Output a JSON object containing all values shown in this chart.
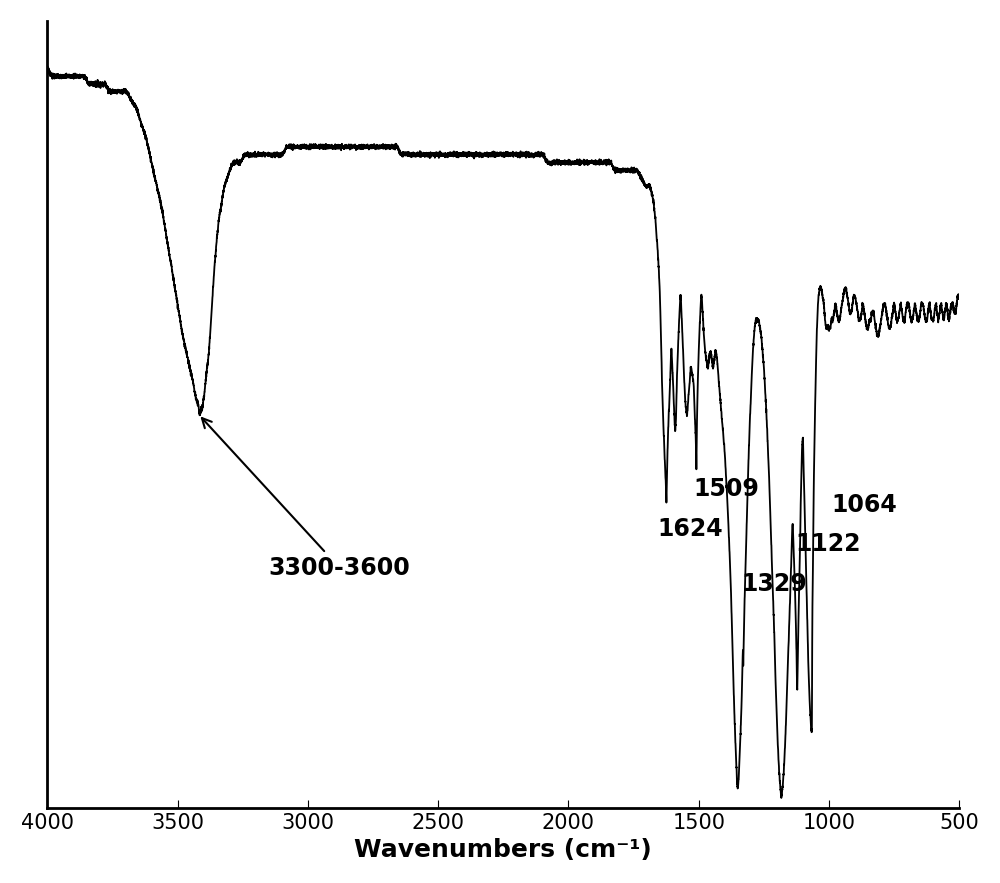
{
  "xlim": [
    4000,
    500
  ],
  "ylim": [
    0,
    100
  ],
  "xlabel": "Wavenumbers (cm⁻¹)",
  "xlabel_fontsize": 18,
  "tick_fontsize": 15,
  "line_color": "#000000",
  "line_width": 1.3,
  "background_color": "#ffffff",
  "annotation_fontsize": 17,
  "annotation_fontweight": "bold",
  "keypoints": [
    [
      4000,
      94
    ],
    [
      3980,
      93
    ],
    [
      3960,
      93
    ],
    [
      3940,
      93
    ],
    [
      3920,
      93
    ],
    [
      3900,
      93
    ],
    [
      3880,
      93
    ],
    [
      3860,
      93
    ],
    [
      3840,
      92
    ],
    [
      3820,
      92
    ],
    [
      3800,
      92
    ],
    [
      3780,
      92
    ],
    [
      3760,
      91
    ],
    [
      3740,
      91
    ],
    [
      3720,
      91
    ],
    [
      3700,
      91
    ],
    [
      3680,
      90
    ],
    [
      3660,
      89
    ],
    [
      3640,
      87
    ],
    [
      3620,
      85
    ],
    [
      3600,
      82
    ],
    [
      3580,
      79
    ],
    [
      3560,
      76
    ],
    [
      3540,
      72
    ],
    [
      3520,
      68
    ],
    [
      3500,
      64
    ],
    [
      3480,
      60
    ],
    [
      3460,
      57
    ],
    [
      3440,
      54
    ],
    [
      3430,
      52
    ],
    [
      3420,
      51
    ],
    [
      3415,
      50
    ],
    [
      3410,
      50.5
    ],
    [
      3405,
      51
    ],
    [
      3400,
      52
    ],
    [
      3390,
      55
    ],
    [
      3380,
      58
    ],
    [
      3370,
      63
    ],
    [
      3360,
      68
    ],
    [
      3350,
      72
    ],
    [
      3340,
      75
    ],
    [
      3330,
      77
    ],
    [
      3320,
      79
    ],
    [
      3310,
      80
    ],
    [
      3300,
      81
    ],
    [
      3280,
      82
    ],
    [
      3260,
      82
    ],
    [
      3240,
      83
    ],
    [
      3220,
      83
    ],
    [
      3200,
      83
    ],
    [
      3180,
      83
    ],
    [
      3160,
      83
    ],
    [
      3140,
      83
    ],
    [
      3120,
      83
    ],
    [
      3100,
      83
    ],
    [
      3080,
      84
    ],
    [
      3060,
      84
    ],
    [
      3040,
      84
    ],
    [
      3020,
      84
    ],
    [
      3000,
      84
    ],
    [
      2980,
      84
    ],
    [
      2960,
      84
    ],
    [
      2940,
      84
    ],
    [
      2920,
      84
    ],
    [
      2900,
      84
    ],
    [
      2880,
      84
    ],
    [
      2860,
      84
    ],
    [
      2840,
      84
    ],
    [
      2820,
      84
    ],
    [
      2800,
      84
    ],
    [
      2780,
      84
    ],
    [
      2760,
      84
    ],
    [
      2740,
      84
    ],
    [
      2720,
      84
    ],
    [
      2700,
      84
    ],
    [
      2680,
      84
    ],
    [
      2660,
      84
    ],
    [
      2640,
      83
    ],
    [
      2620,
      83
    ],
    [
      2600,
      83
    ],
    [
      2580,
      83
    ],
    [
      2560,
      83
    ],
    [
      2540,
      83
    ],
    [
      2520,
      83
    ],
    [
      2500,
      83
    ],
    [
      2480,
      83
    ],
    [
      2460,
      83
    ],
    [
      2440,
      83
    ],
    [
      2420,
      83
    ],
    [
      2400,
      83
    ],
    [
      2380,
      83
    ],
    [
      2360,
      83
    ],
    [
      2340,
      83
    ],
    [
      2320,
      83
    ],
    [
      2300,
      83
    ],
    [
      2280,
      83
    ],
    [
      2260,
      83
    ],
    [
      2240,
      83
    ],
    [
      2220,
      83
    ],
    [
      2200,
      83
    ],
    [
      2180,
      83
    ],
    [
      2160,
      83
    ],
    [
      2140,
      83
    ],
    [
      2120,
      83
    ],
    [
      2100,
      83
    ],
    [
      2080,
      82
    ],
    [
      2060,
      82
    ],
    [
      2040,
      82
    ],
    [
      2020,
      82
    ],
    [
      2000,
      82
    ],
    [
      1980,
      82
    ],
    [
      1960,
      82
    ],
    [
      1940,
      82
    ],
    [
      1920,
      82
    ],
    [
      1900,
      82
    ],
    [
      1880,
      82
    ],
    [
      1860,
      82
    ],
    [
      1840,
      82
    ],
    [
      1820,
      81
    ],
    [
      1800,
      81
    ],
    [
      1780,
      81
    ],
    [
      1760,
      81
    ],
    [
      1740,
      81
    ],
    [
      1720,
      80
    ],
    [
      1700,
      79
    ],
    [
      1690,
      79
    ],
    [
      1680,
      78
    ],
    [
      1670,
      76
    ],
    [
      1660,
      72
    ],
    [
      1650,
      66
    ],
    [
      1645,
      60
    ],
    [
      1640,
      53
    ],
    [
      1635,
      48
    ],
    [
      1630,
      44
    ],
    [
      1625,
      40
    ],
    [
      1624,
      39
    ],
    [
      1622,
      42
    ],
    [
      1620,
      45
    ],
    [
      1615,
      50
    ],
    [
      1610,
      54
    ],
    [
      1605,
      58
    ],
    [
      1600,
      55
    ],
    [
      1595,
      51
    ],
    [
      1590,
      48
    ],
    [
      1587,
      50
    ],
    [
      1584,
      54
    ],
    [
      1580,
      58
    ],
    [
      1575,
      62
    ],
    [
      1570,
      65
    ],
    [
      1565,
      62
    ],
    [
      1560,
      58
    ],
    [
      1555,
      54
    ],
    [
      1550,
      51
    ],
    [
      1545,
      50
    ],
    [
      1540,
      52
    ],
    [
      1535,
      54
    ],
    [
      1530,
      56
    ],
    [
      1525,
      55
    ],
    [
      1520,
      54
    ],
    [
      1515,
      50
    ],
    [
      1510,
      45
    ],
    [
      1509,
      43
    ],
    [
      1508,
      46
    ],
    [
      1505,
      52
    ],
    [
      1502,
      56
    ],
    [
      1500,
      58
    ],
    [
      1495,
      62
    ],
    [
      1490,
      65
    ],
    [
      1485,
      63
    ],
    [
      1480,
      60
    ],
    [
      1475,
      58
    ],
    [
      1470,
      57
    ],
    [
      1465,
      56
    ],
    [
      1460,
      57
    ],
    [
      1455,
      58
    ],
    [
      1450,
      57
    ],
    [
      1445,
      56
    ],
    [
      1440,
      57
    ],
    [
      1435,
      58
    ],
    [
      1430,
      57
    ],
    [
      1425,
      55
    ],
    [
      1420,
      53
    ],
    [
      1415,
      51
    ],
    [
      1410,
      49
    ],
    [
      1405,
      47
    ],
    [
      1400,
      45
    ],
    [
      1395,
      42
    ],
    [
      1390,
      39
    ],
    [
      1385,
      35
    ],
    [
      1380,
      31
    ],
    [
      1375,
      26
    ],
    [
      1370,
      20
    ],
    [
      1365,
      14
    ],
    [
      1360,
      9
    ],
    [
      1355,
      5
    ],
    [
      1352,
      3
    ],
    [
      1350,
      2.5
    ],
    [
      1348,
      3
    ],
    [
      1345,
      5
    ],
    [
      1340,
      9
    ],
    [
      1335,
      14
    ],
    [
      1330,
      20
    ],
    [
      1329,
      18
    ],
    [
      1328,
      20
    ],
    [
      1325,
      25
    ],
    [
      1320,
      31
    ],
    [
      1315,
      37
    ],
    [
      1310,
      43
    ],
    [
      1305,
      48
    ],
    [
      1300,
      52
    ],
    [
      1295,
      56
    ],
    [
      1290,
      59
    ],
    [
      1285,
      61
    ],
    [
      1280,
      62
    ],
    [
      1275,
      62
    ],
    [
      1270,
      62
    ],
    [
      1265,
      61
    ],
    [
      1260,
      60
    ],
    [
      1255,
      58
    ],
    [
      1250,
      56
    ],
    [
      1245,
      53
    ],
    [
      1240,
      50
    ],
    [
      1235,
      46
    ],
    [
      1230,
      42
    ],
    [
      1225,
      37
    ],
    [
      1220,
      32
    ],
    [
      1215,
      27
    ],
    [
      1210,
      22
    ],
    [
      1205,
      16
    ],
    [
      1200,
      11
    ],
    [
      1195,
      7
    ],
    [
      1190,
      4
    ],
    [
      1185,
      2
    ],
    [
      1183,
      1.5
    ],
    [
      1180,
      2
    ],
    [
      1175,
      4
    ],
    [
      1170,
      7
    ],
    [
      1165,
      11
    ],
    [
      1160,
      16
    ],
    [
      1155,
      21
    ],
    [
      1150,
      26
    ],
    [
      1145,
      31
    ],
    [
      1140,
      36
    ],
    [
      1135,
      32
    ],
    [
      1130,
      27
    ],
    [
      1125,
      20
    ],
    [
      1122,
      15
    ],
    [
      1120,
      18
    ],
    [
      1118,
      22
    ],
    [
      1115,
      28
    ],
    [
      1110,
      35
    ],
    [
      1108,
      40
    ],
    [
      1105,
      44
    ],
    [
      1103,
      46
    ],
    [
      1100,
      47
    ],
    [
      1098,
      44
    ],
    [
      1095,
      40
    ],
    [
      1092,
      36
    ],
    [
      1090,
      33
    ],
    [
      1088,
      30
    ],
    [
      1085,
      26
    ],
    [
      1082,
      22
    ],
    [
      1080,
      19
    ],
    [
      1078,
      17
    ],
    [
      1075,
      14
    ],
    [
      1072,
      12
    ],
    [
      1070,
      11
    ],
    [
      1068,
      10
    ],
    [
      1066,
      9.5
    ],
    [
      1064,
      24
    ],
    [
      1062,
      30
    ],
    [
      1060,
      36
    ],
    [
      1058,
      42
    ],
    [
      1055,
      48
    ],
    [
      1052,
      53
    ],
    [
      1050,
      56
    ],
    [
      1048,
      59
    ],
    [
      1045,
      62
    ],
    [
      1040,
      65
    ],
    [
      1035,
      66
    ],
    [
      1030,
      66
    ],
    [
      1025,
      65
    ],
    [
      1020,
      64
    ],
    [
      1015,
      62
    ],
    [
      1010,
      61
    ],
    [
      1005,
      61
    ],
    [
      1000,
      61
    ],
    [
      995,
      61
    ],
    [
      990,
      62
    ],
    [
      985,
      62
    ],
    [
      980,
      63
    ],
    [
      975,
      64
    ],
    [
      970,
      63
    ],
    [
      965,
      62
    ],
    [
      960,
      62
    ],
    [
      955,
      63
    ],
    [
      950,
      64
    ],
    [
      945,
      65
    ],
    [
      940,
      66
    ],
    [
      935,
      66
    ],
    [
      930,
      65
    ],
    [
      925,
      64
    ],
    [
      920,
      63
    ],
    [
      915,
      63
    ],
    [
      910,
      64
    ],
    [
      905,
      65
    ],
    [
      900,
      65
    ],
    [
      895,
      64
    ],
    [
      890,
      63
    ],
    [
      885,
      62
    ],
    [
      880,
      62
    ],
    [
      875,
      63
    ],
    [
      870,
      64
    ],
    [
      865,
      63
    ],
    [
      860,
      62
    ],
    [
      855,
      61
    ],
    [
      850,
      61
    ],
    [
      845,
      62
    ],
    [
      840,
      62
    ],
    [
      835,
      63
    ],
    [
      830,
      63
    ],
    [
      825,
      62
    ],
    [
      820,
      61
    ],
    [
      815,
      60
    ],
    [
      810,
      60
    ],
    [
      805,
      61
    ],
    [
      800,
      62
    ],
    [
      795,
      63
    ],
    [
      790,
      64
    ],
    [
      785,
      64
    ],
    [
      780,
      63
    ],
    [
      775,
      62
    ],
    [
      770,
      61
    ],
    [
      765,
      61
    ],
    [
      760,
      62
    ],
    [
      755,
      63
    ],
    [
      750,
      64
    ],
    [
      745,
      63
    ],
    [
      740,
      62
    ],
    [
      735,
      62
    ],
    [
      730,
      63
    ],
    [
      725,
      64
    ],
    [
      720,
      63
    ],
    [
      715,
      62
    ],
    [
      710,
      62
    ],
    [
      705,
      63
    ],
    [
      700,
      64
    ],
    [
      695,
      64
    ],
    [
      690,
      63
    ],
    [
      685,
      62
    ],
    [
      680,
      62
    ],
    [
      675,
      63
    ],
    [
      670,
      64
    ],
    [
      665,
      63
    ],
    [
      660,
      62
    ],
    [
      655,
      62
    ],
    [
      650,
      63
    ],
    [
      645,
      64
    ],
    [
      640,
      64
    ],
    [
      635,
      63
    ],
    [
      630,
      62
    ],
    [
      625,
      62
    ],
    [
      620,
      63
    ],
    [
      615,
      64
    ],
    [
      610,
      63
    ],
    [
      605,
      62
    ],
    [
      600,
      62
    ],
    [
      595,
      63
    ],
    [
      590,
      64
    ],
    [
      585,
      63
    ],
    [
      580,
      62
    ],
    [
      575,
      63
    ],
    [
      570,
      64
    ],
    [
      565,
      63
    ],
    [
      560,
      62
    ],
    [
      555,
      63
    ],
    [
      550,
      64
    ],
    [
      545,
      63
    ],
    [
      540,
      62
    ],
    [
      535,
      63
    ],
    [
      530,
      64
    ],
    [
      525,
      64
    ],
    [
      520,
      63
    ],
    [
      515,
      63
    ],
    [
      510,
      64
    ],
    [
      505,
      65
    ],
    [
      500,
      65
    ]
  ]
}
